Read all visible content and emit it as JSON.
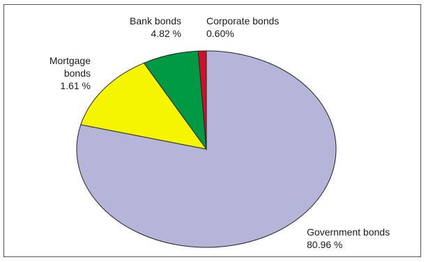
{
  "chart_data": {
    "type": "pie",
    "title": "",
    "legend": "none",
    "slices": [
      {
        "label": "Government bonds",
        "value_label": "80.96 %",
        "value": 80.96,
        "color": "#b5b5d9"
      },
      {
        "label": "Mortgage bonds",
        "value_label": "1.61 %",
        "value": 1.61,
        "color": "#f5f500"
      },
      {
        "label": "Bank bonds",
        "value_label": "4.82 %",
        "value": 4.82,
        "color": "#009a44"
      },
      {
        "label": "Corporate bonds",
        "value_label": "0.60%",
        "value": 0.6,
        "color": "#d0102a"
      }
    ]
  }
}
